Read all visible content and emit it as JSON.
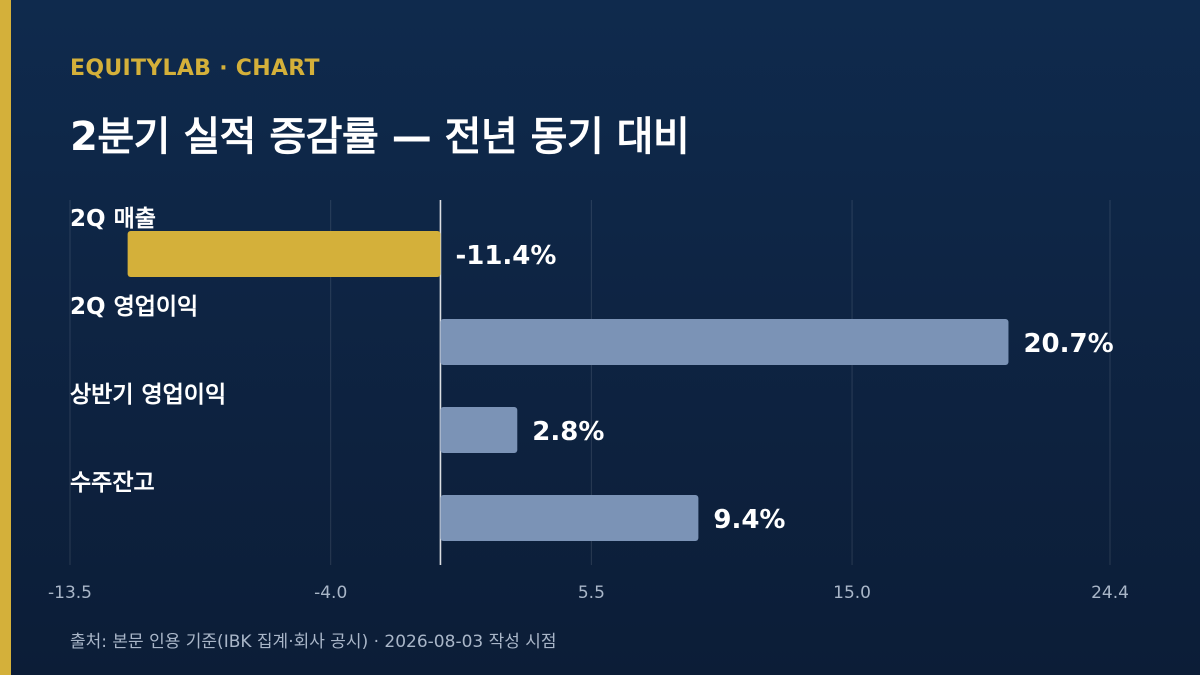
{
  "header": {
    "brand": "EQUITYLAB · CHART",
    "title": "2분기 실적 증감률 — 전년 동기 대비"
  },
  "footer": {
    "source": "출처: 본문 인용 기준(IBK 집계·회사 공시) · 2026-08-03 작성 시점"
  },
  "colors": {
    "highlight": "#d4b03a",
    "bar": "#7b93b6",
    "text": "#ffffff",
    "axis_text": "#a9b6c8"
  },
  "chart_data": {
    "type": "bar",
    "orientation": "horizontal",
    "categories": [
      "2Q 매출",
      "2Q 영업이익",
      "상반기 영업이익",
      "수주잔고"
    ],
    "values": [
      -11.4,
      20.7,
      2.8,
      9.4
    ],
    "data_labels": [
      "-11.4%",
      "20.7%",
      "2.8%",
      "9.4%"
    ],
    "highlight_index": 0,
    "xlim": [
      -13.5,
      24.4
    ],
    "ticks": [
      -13.5,
      -4.0,
      5.5,
      15.0,
      24.4
    ],
    "tick_labels": [
      "-13.5",
      "-4.0",
      "5.5",
      "15.0",
      "24.4"
    ],
    "grid": true,
    "zero_line": true
  }
}
